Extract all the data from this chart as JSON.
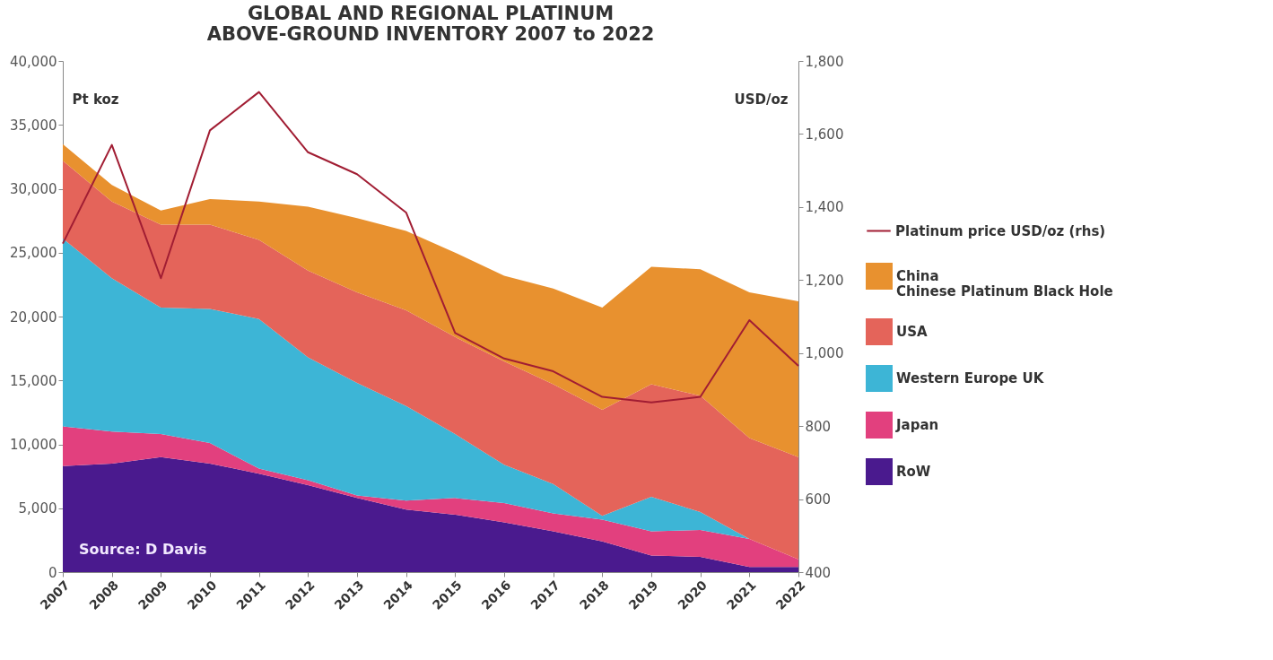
{
  "chart_data": {
    "type": "area",
    "title": "GLOBAL AND REGIONAL PLATINUM\nABOVE-GROUND INVENTORY 2007 to 2022",
    "ylabel": "Pt koz",
    "y2label": "USD/oz",
    "categories": [
      "2007",
      "2008",
      "2009",
      "2010",
      "2011",
      "2012",
      "2013",
      "2014",
      "2015",
      "2016",
      "2017",
      "2018",
      "2019",
      "2020",
      "2021",
      "2022"
    ],
    "stacked": true,
    "series": [
      {
        "name": "RoW",
        "color": "#4a1a8e",
        "values": [
          8300,
          8500,
          9000,
          8500,
          7700,
          6800,
          5800,
          4900,
          4500,
          3900,
          3200,
          2400,
          1300,
          1200,
          400,
          400
        ]
      },
      {
        "name": "Japan",
        "color": "#e2407e",
        "values": [
          3100,
          2500,
          1800,
          1600,
          400,
          400,
          200,
          700,
          1300,
          1500,
          1400,
          1700,
          1900,
          2100,
          2200,
          600
        ]
      },
      {
        "name": "Western Europe UK",
        "color": "#3db5d6",
        "values": [
          14700,
          12000,
          9900,
          10500,
          11700,
          9600,
          8800,
          7400,
          5000,
          3000,
          2300,
          300,
          2700,
          1400,
          0,
          0
        ]
      },
      {
        "name": "USA",
        "color": "#e4645a",
        "values": [
          6100,
          6000,
          6500,
          6600,
          6200,
          6800,
          7100,
          7500,
          7600,
          8100,
          7800,
          8300,
          8800,
          9100,
          7900,
          8000
        ]
      },
      {
        "name": "China",
        "color": "#e8912f",
        "values": [
          1300,
          1300,
          1100,
          2000,
          3000,
          5000,
          5800,
          6200,
          6600,
          6700,
          7500,
          8000,
          9200,
          9900,
          11400,
          12200
        ]
      },
      {
        "name": "Platinum price USD/oz (rhs)",
        "type": "line",
        "axis": "y2",
        "color": "#a11d33",
        "values": [
          1300,
          1570,
          1205,
          1610,
          1715,
          1550,
          1490,
          1385,
          1055,
          985,
          950,
          880,
          865,
          880,
          1090,
          965
        ]
      }
    ],
    "ylim": [
      0,
      40000
    ],
    "yticks": [
      0,
      {
        "value": 5000,
        "label": "5,000"
      },
      {
        "value": 10000,
        "label": "10,000"
      },
      {
        "value": 15000,
        "label": "15,000"
      },
      {
        "value": 20000,
        "label": "20,000"
      },
      {
        "value": 25000,
        "label": "25,000"
      },
      {
        "value": 30000,
        "label": "30,000"
      },
      {
        "value": 35000,
        "label": "35,000"
      },
      {
        "value": 40000,
        "label": "40,000"
      }
    ],
    "y2lim": [
      400,
      1800
    ],
    "y2ticks": [
      400,
      600,
      800,
      {
        "value": 1000,
        "label": "1,000"
      },
      {
        "value": 1200,
        "label": "1,200"
      },
      {
        "value": 1400,
        "label": "1,400"
      },
      {
        "value": 1600,
        "label": "1,600"
      },
      {
        "value": 1800,
        "label": "1,800"
      }
    ],
    "grid": false,
    "legend": "right",
    "annotations": [
      "Source: D Davis",
      "Chinese Platinum Black Hole"
    ]
  }
}
